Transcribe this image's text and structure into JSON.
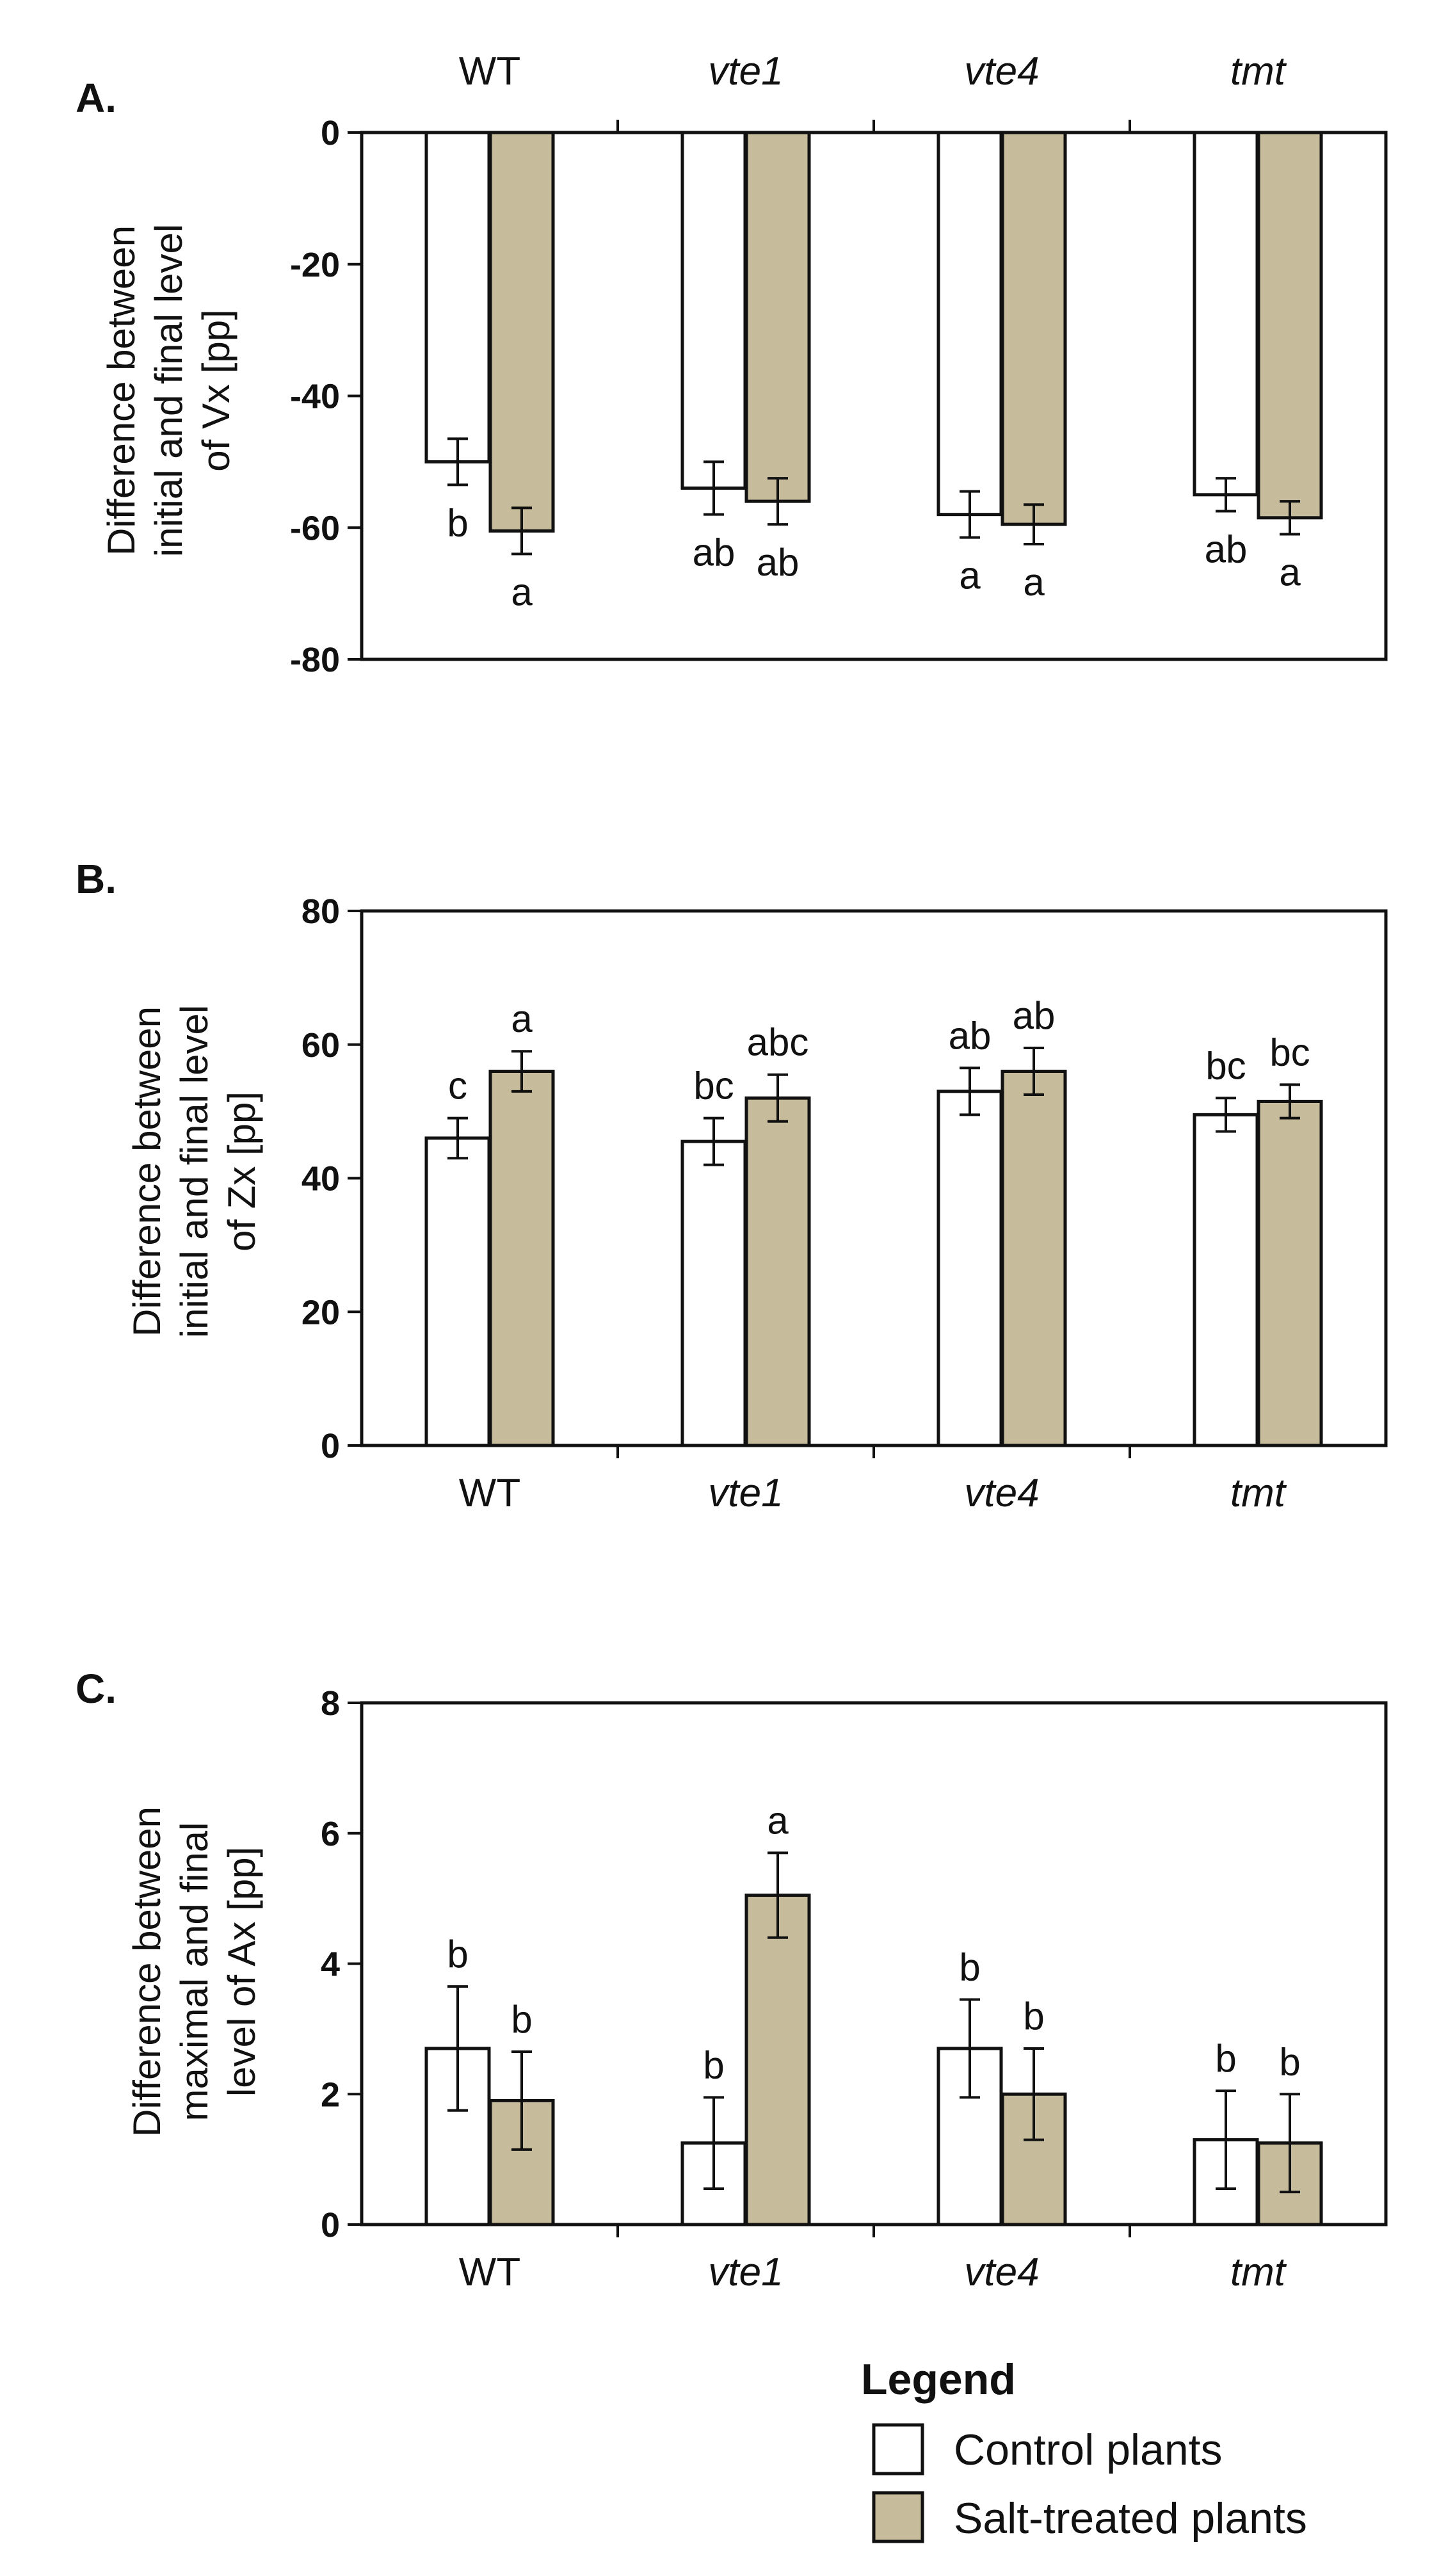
{
  "colors": {
    "control": "#ffffff",
    "salt": "#c6bc9b",
    "stroke": "#111111"
  },
  "legend": {
    "title": "Legend",
    "items": [
      {
        "label": "Control plants",
        "series": "control"
      },
      {
        "label": "Salt-treated plants",
        "series": "salt"
      }
    ]
  },
  "chart_data": [
    {
      "type": "bar",
      "panel": "A.",
      "ylabel_lines": [
        "Difference  between",
        "initial and final level",
        "of  Vx  [pp]"
      ],
      "ylim": [
        -80,
        0
      ],
      "yticks": [
        0,
        -20,
        -40,
        -60,
        -80
      ],
      "category_axis": "top",
      "categories": [
        {
          "name": "WT",
          "italic": false
        },
        {
          "name": "vte1",
          "italic": true
        },
        {
          "name": "vte4",
          "italic": true
        },
        {
          "name": "tmt",
          "italic": true
        }
      ],
      "series": [
        {
          "name": "Control plants",
          "key": "control",
          "values": [
            -50,
            -54,
            -58,
            -55
          ],
          "errors": [
            3.5,
            4,
            3.5,
            2.5
          ],
          "labels": [
            "b",
            "ab",
            "a",
            "ab"
          ]
        },
        {
          "name": "Salt-treated plants",
          "key": "salt",
          "values": [
            -60.5,
            -56,
            -59.5,
            -58.5
          ],
          "errors": [
            3.5,
            3.5,
            3,
            2.5
          ],
          "labels": [
            "a",
            "ab",
            "a",
            "a"
          ]
        }
      ]
    },
    {
      "type": "bar",
      "panel": "B.",
      "ylabel_lines": [
        "Difference  between",
        "initial and final level",
        "of  Zx  [pp]"
      ],
      "ylim": [
        0,
        80
      ],
      "yticks": [
        80,
        60,
        40,
        20,
        0
      ],
      "category_axis": "bottom",
      "categories": [
        {
          "name": "WT",
          "italic": false
        },
        {
          "name": "vte1",
          "italic": true
        },
        {
          "name": "vte4",
          "italic": true
        },
        {
          "name": "tmt",
          "italic": true
        }
      ],
      "series": [
        {
          "name": "Control plants",
          "key": "control",
          "values": [
            46,
            45.5,
            53,
            49.5
          ],
          "errors": [
            3,
            3.5,
            3.5,
            2.5
          ],
          "labels": [
            "c",
            "bc",
            "ab",
            "bc"
          ]
        },
        {
          "name": "Salt-treated plants",
          "key": "salt",
          "values": [
            56,
            52,
            56,
            51.5
          ],
          "errors": [
            3,
            3.5,
            3.5,
            2.5
          ],
          "labels": [
            "a",
            "abc",
            "ab",
            "bc"
          ]
        }
      ]
    },
    {
      "type": "bar",
      "panel": "C.",
      "ylabel_lines": [
        "Difference  between",
        "maximal and final",
        "level of Ax [pp]"
      ],
      "ylim": [
        0,
        8
      ],
      "yticks": [
        8,
        6,
        4,
        2,
        0
      ],
      "category_axis": "bottom",
      "categories": [
        {
          "name": "WT",
          "italic": false
        },
        {
          "name": "vte1",
          "italic": true
        },
        {
          "name": "vte4",
          "italic": true
        },
        {
          "name": "tmt",
          "italic": true
        }
      ],
      "series": [
        {
          "name": "Control plants",
          "key": "control",
          "values": [
            2.7,
            1.25,
            2.7,
            1.3
          ],
          "errors": [
            0.95,
            0.7,
            0.75,
            0.75
          ],
          "labels": [
            "b",
            "b",
            "b",
            "b"
          ]
        },
        {
          "name": "Salt-treated plants",
          "key": "salt",
          "values": [
            1.9,
            5.05,
            2.0,
            1.25
          ],
          "errors": [
            0.75,
            0.65,
            0.7,
            0.75
          ],
          "labels": [
            "b",
            "a",
            "b",
            "b"
          ]
        }
      ]
    }
  ]
}
